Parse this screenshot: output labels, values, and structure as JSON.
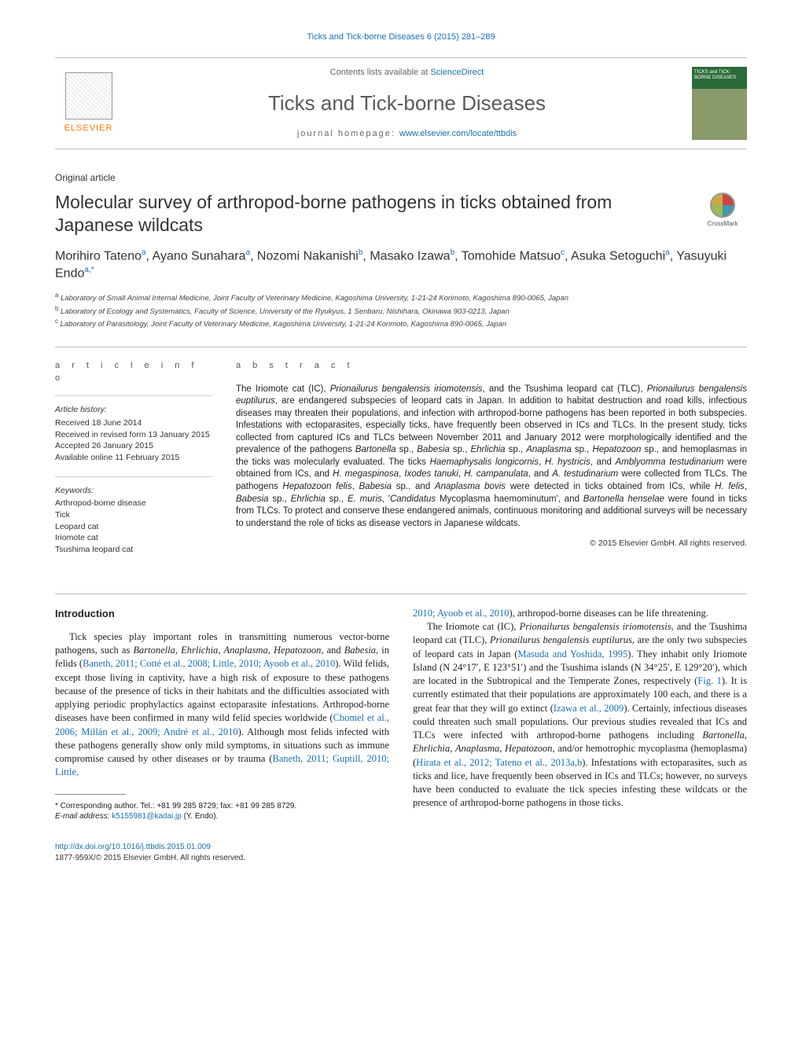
{
  "top_citation": "Ticks and Tick-borne Diseases 6 (2015) 281–289",
  "banner": {
    "contents_prefix": "Contents lists available at ",
    "contents_link": "ScienceDirect",
    "journal_title": "Ticks and Tick-borne Diseases",
    "homepage_prefix": "journal homepage: ",
    "homepage_url": "www.elsevier.com/locate/ttbdis",
    "elsevier_label": "ELSEVIER",
    "cover_text": "TICKS and TICK-BORNE DISEASES"
  },
  "crossmark_label": "CrossMark",
  "article_type": "Original article",
  "article_title": "Molecular survey of arthropod-borne pathogens in ticks obtained from Japanese wildcats",
  "authors_html": "Morihiro Tateno<sup>a</sup>, Ayano Sunahara<sup>a</sup>, Nozomi Nakanishi<sup>b</sup>, Masako Izawa<sup>b</sup>, Tomohide Matsuo<sup>c</sup>, Asuka Setoguchi<sup>a</sup>, Yasuyuki Endo<sup>a,*</sup>",
  "affiliations": {
    "a": "Laboratory of Small Animal Internal Medicine, Joint Faculty of Veterinary Medicine, Kagoshima University, 1-21-24 Korimoto, Kagoshima 890-0065, Japan",
    "b": "Laboratory of Ecology and Systematics, Faculty of Science, University of the Ryukyus, 1 Senbaru, Nishihara, Okinawa 903-0213, Japan",
    "c": "Laboratory of Parasitology, Joint Faculty of Veterinary Medicine, Kagoshima University, 1-21-24 Korimoto, Kagoshima 890-0065, Japan"
  },
  "article_info": {
    "heading": "a r t i c l e   i n f o",
    "history_label": "Article history:",
    "received": "Received 18 June 2014",
    "revised": "Received in revised form 13 January 2015",
    "accepted": "Accepted 26 January 2015",
    "online": "Available online 11 February 2015",
    "keywords_label": "Keywords:",
    "keywords": [
      "Arthropod-borne disease",
      "Tick",
      "Leopard cat",
      "Iriomote cat",
      "Tsushima leopard cat"
    ]
  },
  "abstract": {
    "heading": "a b s t r a c t",
    "text_html": "The Iriomote cat (IC), <em>Prionailurus bengalensis iriomotensis</em>, and the Tsushima leopard cat (TLC), <em>Prionailurus bengalensis euptilurus</em>, are endangered subspecies of leopard cats in Japan. In addition to habitat destruction and road kills, infectious diseases may threaten their populations, and infection with arthropod-borne pathogens has been reported in both subspecies. Infestations with ectoparasites, especially ticks, have frequently been observed in ICs and TLCs. In the present study, ticks collected from captured ICs and TLCs between November 2011 and January 2012 were morphologically identified and the prevalence of the pathogens <em>Bartonella</em> sp., <em>Babesia</em> sp., <em>Ehrlichia</em> sp., <em>Anaplasma</em> sp., <em>Hepatozoon</em> sp., and hemoplasmas in the ticks was molecularly evaluated. The ticks <em>Haemaphysalis longicornis</em>, <em>H. hystricis</em>, and <em>Amblyomma testudinarium</em> were obtained from ICs, and <em>H. megaspinosa</em>, <em>Ixodes tanuki</em>, <em>H. campanulata</em>, and <em>A. testudinarium</em> were collected from TLCs. The pathogens <em>Hepatozoon felis</em>, <em>Babesia</em> sp., and <em>Anaplasma bovis</em> were detected in ticks obtained from ICs, while <em>H. felis</em>, <em>Babesia</em> sp., <em>Ehrlichia</em> sp., <em>E. muris</em>, '<em>Candidatus</em> Mycoplasma haemominutum', and <em>Bartonella henselae</em> were found in ticks from TLCs. To protect and conserve these endangered animals, continuous monitoring and additional surveys will be necessary to understand the role of ticks as disease vectors in Japanese wildcats.",
    "copyright": "© 2015 Elsevier GmbH. All rights reserved."
  },
  "body": {
    "intro_heading": "Introduction",
    "para1_html": "Tick species play important roles in transmitting numerous vector-borne pathogens, such as <em>Bartonella</em>, <em>Ehrlichia</em>, <em>Anaplasma</em>, <em>Hepatozoon</em>, and <em>Babesia</em>, in felids (<span class=\"ref\">Baneth, 2011; Cotté et al., 2008; Little, 2010; Ayoob et al., 2010</span>). Wild felids, except those living in captivity, have a high risk of exposure to these pathogens because of the presence of ticks in their habitats and the difficulties associated with applying periodic prophylactics against ectoparasite infestations. Arthropod-borne diseases have been confirmed in many wild felid species worldwide (<span class=\"ref\">Chomel et al., 2006; Millán et al., 2009; André et al., 2010</span>). Although most felids infected with these pathogens generally show only mild symptoms, in situations such as immune compromise caused by other diseases or by trauma (<span class=\"ref\">Baneth, 2011; Guptill, 2010; Little,</span>",
    "para1_cont_html": "<span class=\"ref\">2010; Ayoob et al., 2010</span>), arthropod-borne diseases can be life threatening.",
    "para2_html": "The Iriomote cat (IC), <em>Prionailurus bengalensis iriomotensis</em>, and the Tsushima leopard cat (TLC), <em>Prionailurus bengalensis euptilurus</em>, are the only two subspecies of leopard cats in Japan (<span class=\"ref\">Masuda and Yoshida, 1995</span>). They inhabit only Iriomote Island (N 24°17′, E 123°51′) and the Tsushima islands (N 34°25′, E 129°20′), which are located in the Subtropical and the Temperate Zones, respectively (<span class=\"ref\">Fig. 1</span>). It is currently estimated that their populations are approximately 100 each, and there is a great fear that they will go extinct (<span class=\"ref\">Izawa et al., 2009</span>). Certainly, infectious diseases could threaten such small populations. Our previous studies revealed that ICs and TLCs were infected with arthropod-borne pathogens including <em>Bartonella</em>, <em>Ehrlichia</em>, <em>Anaplasma</em>, <em>Hepatozoon</em>, and/or hemotrophic mycoplasma (hemoplasma) (<span class=\"ref\">Hirata et al., 2012; Tateno et al., 2013a,b</span>). Infestations with ectoparasites, such as ticks and lice, have frequently been observed in ICs and TLCs; however, no surveys have been conducted to evaluate the tick species infesting these wildcats or the presence of arthropod-borne pathogens in those ticks."
  },
  "footnote": {
    "corr": "* Corresponding author. Tel.: +81 99 285 8729; fax: +81 99 285 8729.",
    "email_label": "E-mail address:",
    "email": "k5155981@kadai.jp",
    "email_name": "(Y. Endo)."
  },
  "footer": {
    "doi": "http://dx.doi.org/10.1016/j.ttbdis.2015.01.009",
    "issn_line": "1877-959X/© 2015 Elsevier GmbH. All rights reserved."
  },
  "colors": {
    "link": "#1a6fb5",
    "text": "#222222",
    "muted": "#666666",
    "rule": "#bbbbbb",
    "elsevier_orange": "#ff7800",
    "cover_green_dark": "#2a6b3a",
    "cover_green_light": "#8b9a6b"
  }
}
